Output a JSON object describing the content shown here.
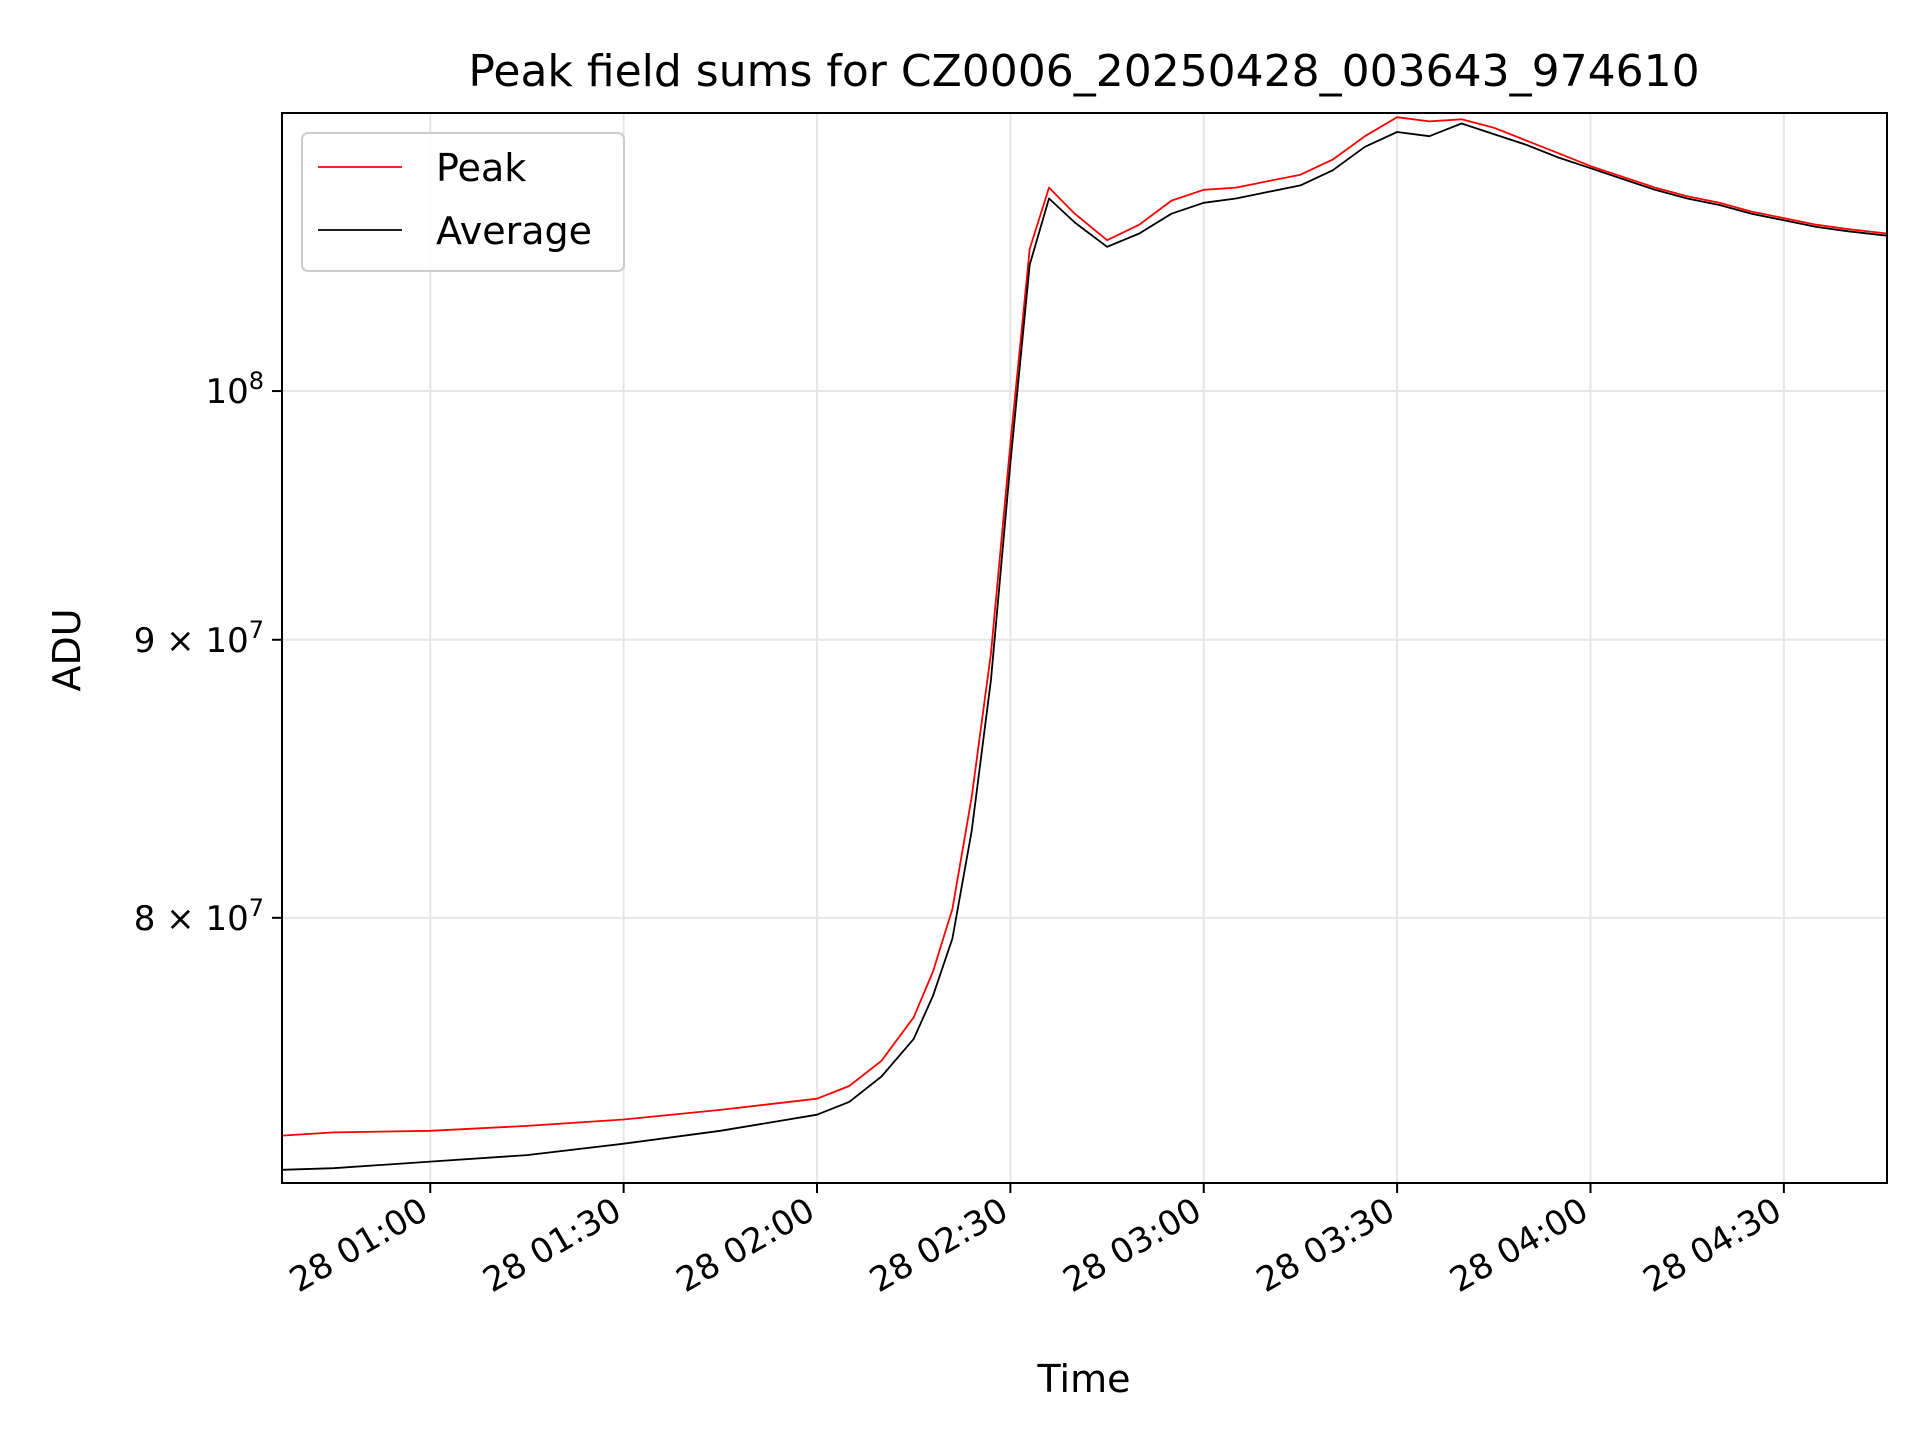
{
  "chart_data": {
    "type": "line",
    "title": "Peak field sums for CZ0006_20250428_003643_974610",
    "xlabel": "Time",
    "ylabel": "ADU",
    "xscale": "time",
    "yscale": "log",
    "grid": true,
    "legend_position": "top-left",
    "xlim": [
      "2025-04-28 00:37",
      "2025-04-28 04:46"
    ],
    "ylim": [
      71500000,
      112500000
    ],
    "x_ticks": [
      "2025-04-28 01:00",
      "2025-04-28 01:30",
      "2025-04-28 02:00",
      "2025-04-28 02:30",
      "2025-04-28 03:00",
      "2025-04-28 03:30",
      "2025-04-28 04:00",
      "2025-04-28 04:30"
    ],
    "x_tick_labels": [
      "28 01:00",
      "28 01:30",
      "28 02:00",
      "28 02:30",
      "28 03:00",
      "28 03:30",
      "28 04:00",
      "28 04:30"
    ],
    "y_ticks": [
      80000000,
      90000000,
      100000000
    ],
    "y_tick_labels": [
      {
        "mantissa": "8",
        "base": "10",
        "exp": "7"
      },
      {
        "mantissa": "9",
        "base": "10",
        "exp": "7"
      },
      {
        "mantissa": "",
        "base": "10",
        "exp": "8"
      }
    ],
    "series": [
      {
        "name": "Peak",
        "color": "#ff0000",
        "x": [
          "2025-04-28 00:37",
          "2025-04-28 00:45",
          "2025-04-28 01:00",
          "2025-04-28 01:15",
          "2025-04-28 01:30",
          "2025-04-28 01:45",
          "2025-04-28 02:00",
          "2025-04-28 02:05",
          "2025-04-28 02:10",
          "2025-04-28 02:15",
          "2025-04-28 02:18",
          "2025-04-28 02:21",
          "2025-04-28 02:24",
          "2025-04-28 02:27",
          "2025-04-28 02:30",
          "2025-04-28 02:33",
          "2025-04-28 02:36",
          "2025-04-28 02:40",
          "2025-04-28 02:45",
          "2025-04-28 02:50",
          "2025-04-28 02:55",
          "2025-04-28 03:00",
          "2025-04-28 03:05",
          "2025-04-28 03:10",
          "2025-04-28 03:15",
          "2025-04-28 03:20",
          "2025-04-28 03:25",
          "2025-04-28 03:30",
          "2025-04-28 03:35",
          "2025-04-28 03:40",
          "2025-04-28 03:45",
          "2025-04-28 03:50",
          "2025-04-28 03:55",
          "2025-04-28 04:00",
          "2025-04-28 04:05",
          "2025-04-28 04:10",
          "2025-04-28 04:15",
          "2025-04-28 04:20",
          "2025-04-28 04:25",
          "2025-04-28 04:30",
          "2025-04-28 04:35",
          "2025-04-28 04:40",
          "2025-04-28 04:46"
        ],
        "y": [
          72950000,
          73050000,
          73100000,
          73250000,
          73450000,
          73750000,
          74100000,
          74500000,
          75300000,
          76700000,
          78200000,
          80300000,
          84200000,
          89500000,
          97800000,
          106200000,
          109000000,
          107800000,
          106600000,
          107300000,
          108400000,
          108900000,
          109000000,
          109300000,
          109600000,
          110300000,
          111400000,
          112300000,
          112100000,
          112200000,
          111800000,
          111200000,
          110600000,
          110000000,
          109500000,
          109000000,
          108600000,
          108300000,
          107900000,
          107600000,
          107300000,
          107100000,
          106900000
        ]
      },
      {
        "name": "Average",
        "color": "#000000",
        "x": [
          "2025-04-28 00:37",
          "2025-04-28 00:45",
          "2025-04-28 01:00",
          "2025-04-28 01:15",
          "2025-04-28 01:30",
          "2025-04-28 01:45",
          "2025-04-28 02:00",
          "2025-04-28 02:05",
          "2025-04-28 02:10",
          "2025-04-28 02:15",
          "2025-04-28 02:18",
          "2025-04-28 02:21",
          "2025-04-28 02:24",
          "2025-04-28 02:27",
          "2025-04-28 02:30",
          "2025-04-28 02:33",
          "2025-04-28 02:36",
          "2025-04-28 02:40",
          "2025-04-28 02:45",
          "2025-04-28 02:50",
          "2025-04-28 02:55",
          "2025-04-28 03:00",
          "2025-04-28 03:05",
          "2025-04-28 03:10",
          "2025-04-28 03:15",
          "2025-04-28 03:20",
          "2025-04-28 03:25",
          "2025-04-28 03:30",
          "2025-04-28 03:35",
          "2025-04-28 03:40",
          "2025-04-28 03:45",
          "2025-04-28 03:50",
          "2025-04-28 03:55",
          "2025-04-28 04:00",
          "2025-04-28 04:05",
          "2025-04-28 04:10",
          "2025-04-28 04:15",
          "2025-04-28 04:20",
          "2025-04-28 04:25",
          "2025-04-28 04:30",
          "2025-04-28 04:35",
          "2025-04-28 04:40",
          "2025-04-28 04:46"
        ],
        "y": [
          71900000,
          71950000,
          72150000,
          72350000,
          72700000,
          73100000,
          73600000,
          74000000,
          74800000,
          76000000,
          77400000,
          79300000,
          83000000,
          88500000,
          97000000,
          105500000,
          108500000,
          107400000,
          106300000,
          106900000,
          107800000,
          108300000,
          108500000,
          108800000,
          109100000,
          109800000,
          110900000,
          111600000,
          111400000,
          112000000,
          111500000,
          111000000,
          110400000,
          109900000,
          109400000,
          108900000,
          108500000,
          108200000,
          107800000,
          107500000,
          107200000,
          107000000,
          106800000
        ]
      }
    ]
  }
}
